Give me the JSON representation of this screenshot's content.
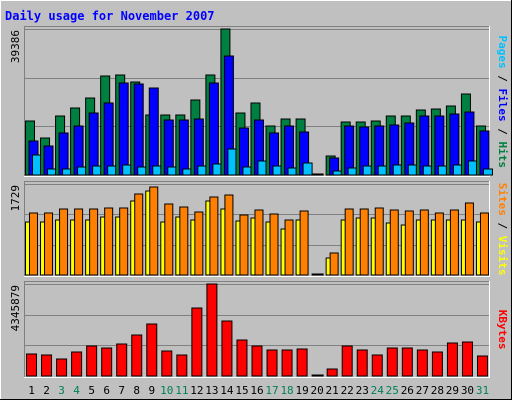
{
  "chart_data": {
    "type": "bar",
    "title": "Daily usage for November 2007",
    "days": [
      "1",
      "2",
      "3",
      "4",
      "5",
      "6",
      "7",
      "8",
      "9",
      "10",
      "11",
      "12",
      "13",
      "14",
      "15",
      "16",
      "17",
      "18",
      "19",
      "20",
      "21",
      "22",
      "23",
      "24",
      "25",
      "26",
      "27",
      "28",
      "29",
      "30",
      "31"
    ],
    "weekend_days": [
      "3",
      "4",
      "10",
      "11",
      "17",
      "18",
      "24",
      "25",
      "31"
    ],
    "panels": [
      {
        "id": "hits",
        "max_label": "39386",
        "ymax": 39386,
        "labels": [
          {
            "text": "Pages",
            "color": "#00c0ff"
          },
          {
            "text": " / ",
            "color": "#000000"
          },
          {
            "text": "Files",
            "color": "#0000ff"
          },
          {
            "text": " / ",
            "color": "#000000"
          },
          {
            "text": "Hits",
            "color": "#008040"
          }
        ],
        "series": [
          {
            "name": "Hits",
            "color": "#008040",
            "values": [
              14500,
              10000,
              15900,
              18100,
              20900,
              26700,
              27100,
              25100,
              16200,
              16100,
              16100,
              20300,
              27000,
              39386,
              16600,
              19400,
              13200,
              15200,
              15200,
              0,
              5200,
              14200,
              14400,
              14500,
              16000,
              16000,
              17500,
              17700,
              18500,
              21800,
              13200
            ]
          },
          {
            "name": "Files",
            "color": "#0000ff",
            "values": [
              9300,
              7800,
              11300,
              13200,
              16700,
              19400,
              24800,
              24600,
              23400,
              14800,
              14800,
              15200,
              24800,
              32000,
              12700,
              14800,
              11400,
              13200,
              11700,
              0,
              4500,
              13300,
              12900,
              13200,
              13600,
              14000,
              15800,
              15800,
              16500,
              17000,
              12000
            ]
          },
          {
            "name": "Pages",
            "color": "#00c0ff",
            "values": [
              5300,
              1500,
              1600,
              2200,
              2400,
              2400,
              2600,
              2200,
              2300,
              2200,
              1600,
              2500,
              2900,
              6900,
              2200,
              3900,
              2300,
              1800,
              3200,
              0,
              1100,
              1900,
              2300,
              2500,
              2800,
              2700,
              2500,
              2300,
              2600,
              3900,
              1500
            ]
          }
        ]
      },
      {
        "id": "visits",
        "max_label": "1729",
        "ymax": 1729,
        "labels": [
          {
            "text": "Sites",
            "color": "#ff8000"
          },
          {
            "text": " / ",
            "color": "#000000"
          },
          {
            "text": "Visits",
            "color": "#ffff00"
          }
        ],
        "series": [
          {
            "name": "Visits",
            "color": "#ffff00",
            "values": [
              1000,
              1000,
              1050,
              1050,
              1050,
              1100,
              1110,
              1400,
              1590,
              1000,
              1100,
              1050,
              1400,
              1250,
              1030,
              1080,
              1000,
              880,
              1050,
              0,
              330,
              1050,
              1080,
              1080,
              990,
              950,
              1050,
              1050,
              1050,
              1050,
              1000
            ]
          },
          {
            "name": "Sites",
            "color": "#ff8000",
            "values": [
              1180,
              1180,
              1250,
              1250,
              1260,
              1270,
              1270,
              1540,
              1670,
              1340,
              1300,
              1200,
              1480,
              1520,
              1140,
              1240,
              1160,
              1040,
              1220,
              0,
              410,
              1250,
              1250,
              1280,
              1240,
              1210,
              1240,
              1180,
              1240,
              1370,
              1170
            ]
          }
        ]
      },
      {
        "id": "kbytes",
        "max_label": "4345879",
        "ymax": 4345879,
        "labels": [
          {
            "text": "KBytes",
            "color": "#ff0000"
          }
        ],
        "series": [
          {
            "name": "KBytes",
            "color": "#ff0000",
            "values": [
              1050000,
              1000000,
              790000,
              1150000,
              1420000,
              1320000,
              1490000,
              1930000,
              2470000,
              1190000,
              990000,
              3230000,
              4345879,
              2600000,
              1680000,
              1440000,
              1250000,
              1210000,
              1290000,
              0,
              340000,
              1430000,
              1250000,
              1010000,
              1310000,
              1310000,
              1240000,
              1130000,
              1580000,
              1600000,
              940000
            ]
          }
        ]
      }
    ]
  }
}
